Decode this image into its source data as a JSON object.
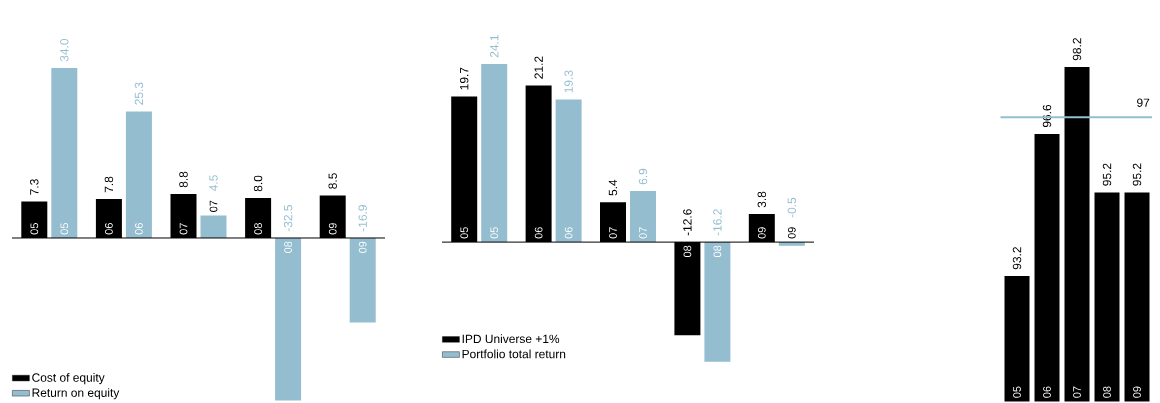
{
  "chart_data": [
    {
      "type": "bar",
      "categories": [
        "05",
        "06",
        "07",
        "08",
        "09"
      ],
      "series": [
        {
          "name": "Cost of equity",
          "color": "#000000",
          "values": [
            7.3,
            7.8,
            8.8,
            8.0,
            8.5
          ],
          "value_labels": [
            "7.3",
            "7.8",
            "8.8",
            "8.0",
            "8.5"
          ]
        },
        {
          "name": "Return on equity",
          "color": "#94bdd0",
          "values": [
            34.0,
            25.3,
            4.5,
            -32.5,
            -16.9
          ],
          "value_labels": [
            "34.0",
            "25.3",
            "4.5",
            "-32.5",
            "-16.9"
          ]
        }
      ],
      "legend": "bottom left"
    },
    {
      "type": "bar",
      "categories": [
        "05",
        "06",
        "07",
        "08",
        "09"
      ],
      "series": [
        {
          "name": "IPD Universe +1%",
          "color": "#000000",
          "values": [
            19.7,
            21.2,
            5.4,
            -12.6,
            3.8
          ]
        },
        {
          "name": "Portfolio total return",
          "color": "#94bdd0",
          "values": [
            24.1,
            19.3,
            6.9,
            -16.2,
            -0.5
          ]
        }
      ],
      "data_labels": true,
      "legend": "bottom left"
    },
    {
      "type": "bar",
      "categories": [
        "05",
        "06",
        "07",
        "08",
        "09"
      ],
      "series": [
        {
          "color": "#000000",
          "values": [
            93.2,
            96.6,
            98.2,
            95.2,
            95.2
          ]
        }
      ],
      "data_labels": true,
      "ylim": [
        90.2,
        98.2
      ],
      "ref_lines": [
        {
          "axis": "y",
          "value": 97,
          "label": "97",
          "color": "#94bdd0"
        }
      ]
    }
  ]
}
